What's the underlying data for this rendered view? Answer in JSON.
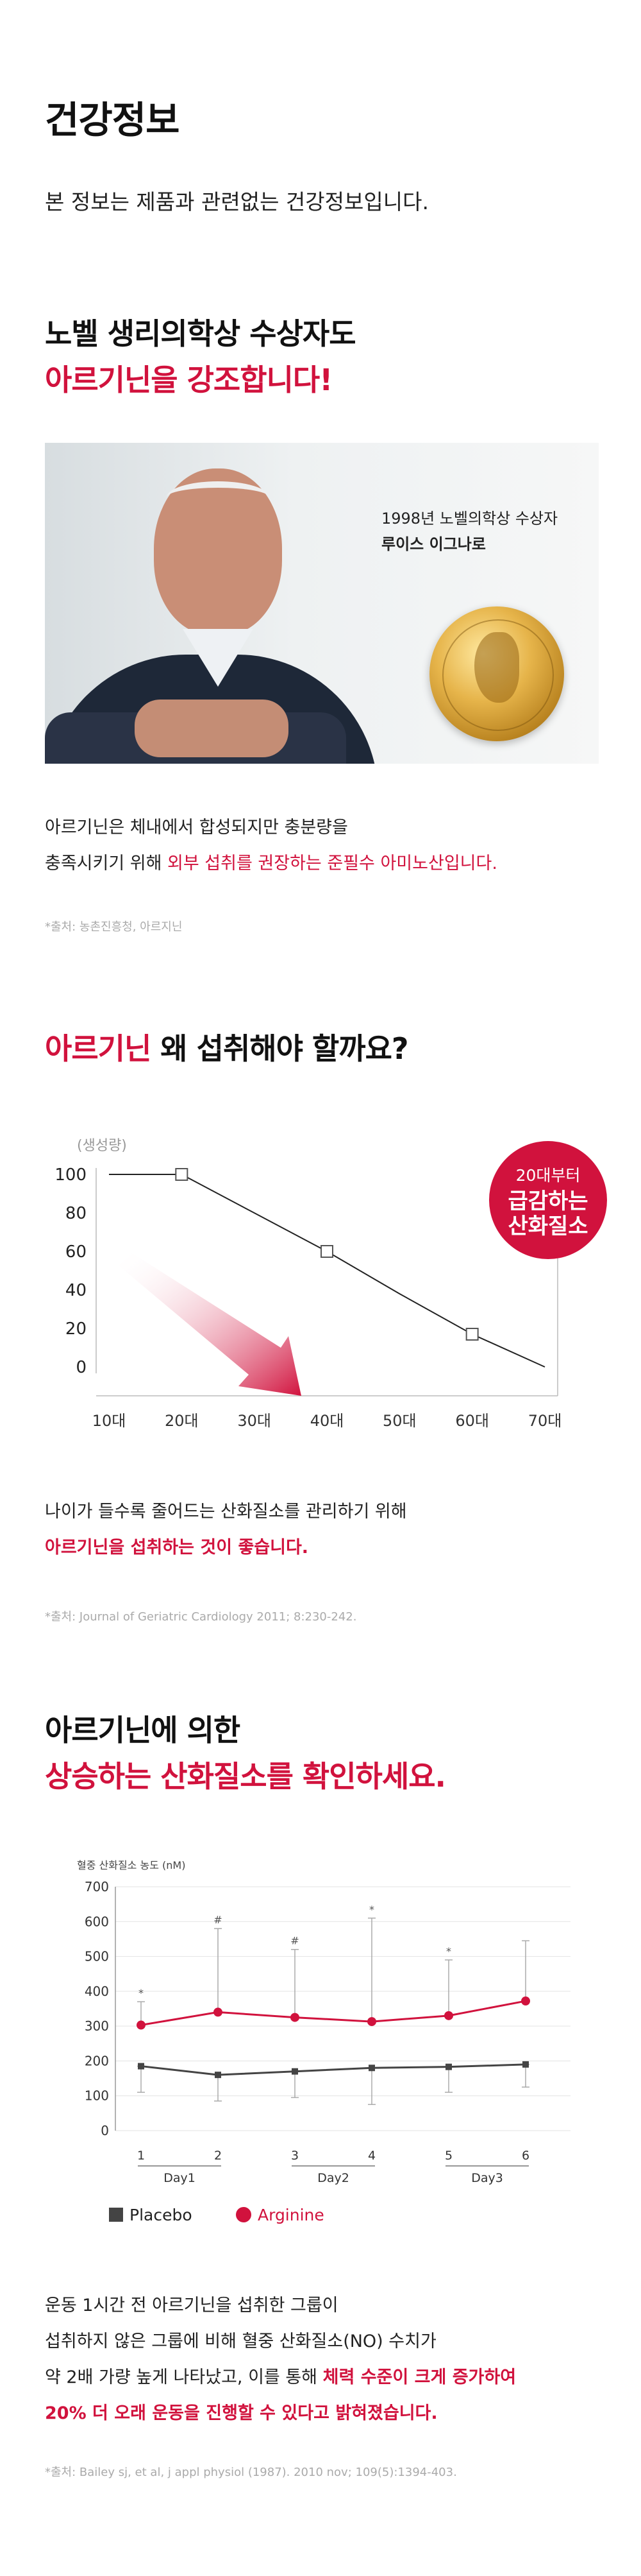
{
  "header": {
    "title": "건강정보",
    "intro": "본 정보는 제품과 관련없는 건강정보입니다."
  },
  "section1": {
    "heading_line1": "노벨 생리의학상 수상자도",
    "heading_line2": "아르기닌을 강조합니다!",
    "photo_caption_line1": "1998년 노벨의학상 수상자",
    "photo_caption_line2": "루이스 이그나로",
    "body_line1": "아르기닌은 체내에서 합성되지만 충분량을",
    "body_line2_normal": "충족시키기 위해 ",
    "body_line2_highlight": "외부 섭취를 권장하는 준필수 아미노산입니다.",
    "source": "*출처: 농촌진흥청, 아르지닌"
  },
  "section2": {
    "heading_highlight": "아르기닌",
    "heading_rest": " 왜 섭취해야 할까요?",
    "chart_data": {
      "type": "line",
      "ylabel": "(생성량)",
      "categories": [
        "10대",
        "20대",
        "30대",
        "40대",
        "50대",
        "60대",
        "70대"
      ],
      "values": [
        100,
        100,
        80,
        60,
        38,
        17,
        0
      ],
      "markers": [
        {
          "x": "20대",
          "y": 100
        },
        {
          "x": "40대",
          "y": 60
        },
        {
          "x": "60대",
          "y": 17
        }
      ],
      "yticks": [
        0,
        20,
        40,
        60,
        80,
        100
      ],
      "ylim": [
        0,
        100
      ],
      "badge_lines": [
        "20대부터",
        "급감하는",
        "산화질소"
      ]
    },
    "body_line1": "나이가 들수록 줄어드는 산화질소를 관리하기 위해",
    "body_line2": "아르기닌을 섭취하는 것이 좋습니다.",
    "source": "*출처: Journal of Geriatric Cardiology 2011; 8:230-242."
  },
  "section3": {
    "heading_line1": "아르기닌에 의한",
    "heading_line2": "상승하는 산화질소를 확인하세요.",
    "chart_data": {
      "type": "line",
      "ylabel": "혈중 산화질소 농도 (nM)",
      "x": [
        "1",
        "2",
        "3",
        "4",
        "5",
        "6"
      ],
      "groups": [
        "Day1",
        "Day2",
        "Day3"
      ],
      "yticks": [
        0,
        100,
        200,
        300,
        400,
        500,
        600,
        700
      ],
      "ylim": [
        0,
        700
      ],
      "series": [
        {
          "name": "Placebo",
          "color": "#444444",
          "values": [
            185,
            160,
            170,
            180,
            183,
            190
          ],
          "err_low": [
            110,
            85,
            95,
            75,
            110,
            125
          ],
          "err_high": [
            185,
            160,
            170,
            180,
            183,
            190
          ]
        },
        {
          "name": "Arginine",
          "color": "#d1123d",
          "values": [
            303,
            340,
            325,
            313,
            330,
            372
          ],
          "err_low": [
            303,
            340,
            325,
            313,
            330,
            372
          ],
          "err_high": [
            370,
            580,
            520,
            610,
            490,
            545
          ]
        }
      ],
      "annotations": [
        "*",
        "#",
        "#",
        "*",
        "*",
        ""
      ],
      "legend": [
        "Placebo",
        "Arginine"
      ]
    },
    "body_line1": "운동 1시간 전 아르기닌을 섭취한 그룹이",
    "body_line2": "섭취하지 않은 그룹에 비해 혈중 산화질소(NO) 수치가",
    "body_line3_normal": "약 2배 가량 높게 나타났고, 이를 통해 ",
    "body_line3_highlight": "체력 수준이 크게 증가하여",
    "body_line4": "20% 더 오래 운동을 진행할 수 있다고 밝혀졌습니다.",
    "source": "*출처: Bailey sj, et al, j appl physiol (1987). 2010 nov; 109(5):1394-403."
  }
}
